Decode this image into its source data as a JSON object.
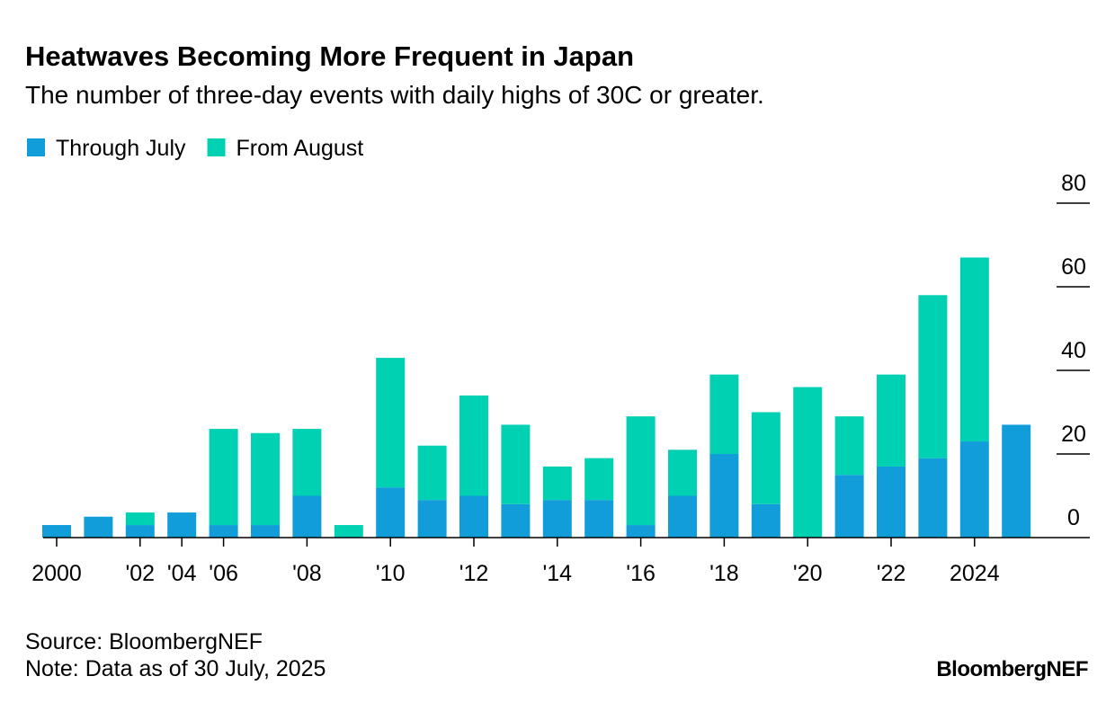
{
  "chart_data": {
    "type": "stacked-bar",
    "title": "Heatwaves Becoming More Frequent in Japan",
    "subtitle": "The number of three-day events with daily highs of 30C or greater.",
    "categories": [
      "2000",
      null,
      "'02",
      "'04",
      "'06",
      null,
      "'08",
      null,
      "'10",
      null,
      "'12",
      null,
      "'14",
      null,
      "'16",
      null,
      "'18",
      null,
      "'20",
      null,
      "'22",
      null,
      "2024",
      null
    ],
    "series": [
      {
        "name": "Through July",
        "color": "#109dd9",
        "values": [
          3,
          5,
          3,
          6,
          3,
          3,
          10,
          0,
          12,
          9,
          10,
          8,
          9,
          9,
          3,
          10,
          20,
          8,
          0,
          15,
          17,
          19,
          23,
          27
        ]
      },
      {
        "name": "From August",
        "color": "#00d1b2",
        "values": [
          0,
          0,
          3,
          0,
          23,
          22,
          16,
          3,
          31,
          13,
          24,
          19,
          8,
          10,
          26,
          11,
          19,
          22,
          36,
          14,
          22,
          39,
          44,
          0
        ]
      }
    ],
    "ylim": [
      0,
      80
    ],
    "yticks": [
      0,
      20,
      40,
      60,
      80
    ],
    "legend": "top-left",
    "source": "Source: BloombergNEF",
    "note": "Note: Data as of 30 July, 2025",
    "brand": "BloombergNEF"
  }
}
